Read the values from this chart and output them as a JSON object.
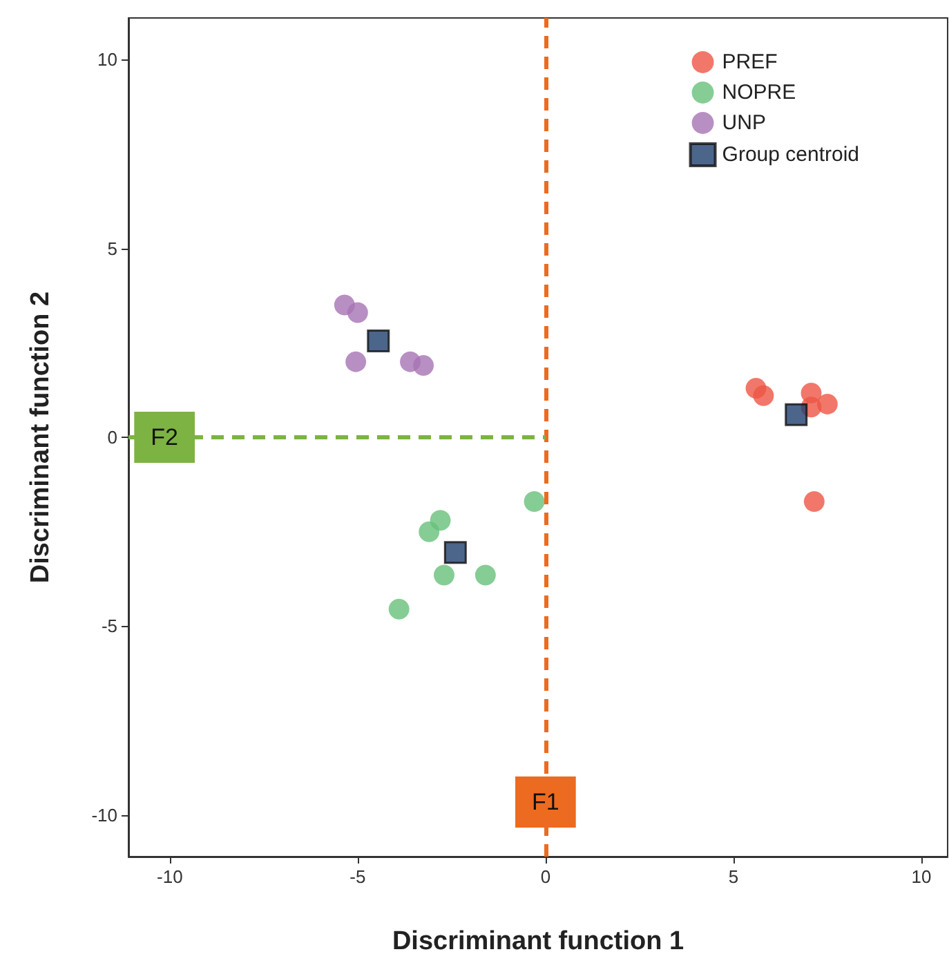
{
  "chart_data": {
    "type": "scatter",
    "xlabel": "Discriminant function 1",
    "ylabel": "Discriminant function 2",
    "xlim": [
      -11.1,
      10.7
    ],
    "ylim": [
      -11.1,
      11.1
    ],
    "xticks": [
      -10,
      -5,
      0,
      5,
      10
    ],
    "yticks": [
      -10,
      -5,
      0,
      5,
      10
    ],
    "grid": false,
    "legend": "top right",
    "series": [
      {
        "name": "PREF",
        "color": "#ee5545",
        "marker": "circle",
        "x": [
          5.6,
          5.8,
          7.07,
          7.07,
          7.5,
          7.15
        ],
        "values": [
          1.3,
          1.1,
          1.17,
          0.8,
          0.88,
          -1.7
        ]
      },
      {
        "name": "NOPRE",
        "color": "#66c07a",
        "marker": "circle",
        "x": [
          -0.3,
          -2.8,
          -3.1,
          -2.7,
          -1.6,
          -3.9
        ],
        "values": [
          -1.7,
          -2.2,
          -2.5,
          -3.65,
          -3.65,
          -4.55
        ]
      },
      {
        "name": "UNP",
        "color": "#a673b4",
        "marker": "circle",
        "x": [
          -5.35,
          -5.0,
          -5.05,
          -3.6,
          -3.25
        ],
        "values": [
          3.5,
          3.3,
          2.0,
          2.0,
          1.9
        ]
      },
      {
        "name": "Group centroid",
        "color": "#1f3e6e",
        "marker": "square",
        "x": [
          6.67,
          -2.4,
          -4.45
        ],
        "values": [
          0.6,
          -3.05,
          2.55
        ]
      }
    ],
    "ref_lines": [
      {
        "axis": "x",
        "value": 0,
        "label": "F1",
        "color": "#ec6b20",
        "line_style": "dashed"
      },
      {
        "axis": "y",
        "value": 0,
        "label": "F2",
        "color": "#7cb342",
        "line_style": "dashed"
      }
    ]
  }
}
